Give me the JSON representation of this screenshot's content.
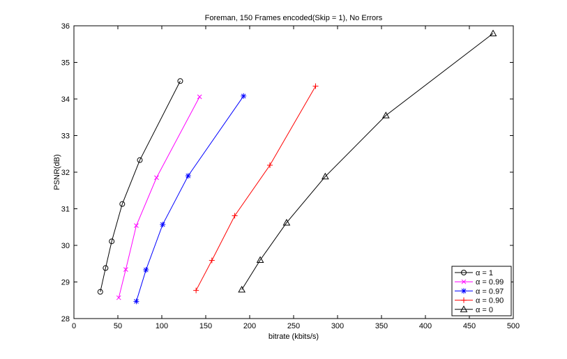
{
  "chart_data": {
    "type": "line",
    "title": "Foreman, 150 Frames encoded(Skip = 1), No Errors",
    "xlabel": "bitrate (kbits/s)",
    "ylabel": "PSNR(dB)",
    "xlim": [
      0,
      500
    ],
    "ylim": [
      28,
      36
    ],
    "xticks": [
      "0",
      "50",
      "100",
      "150",
      "200",
      "250",
      "300",
      "350",
      "400",
      "450",
      "500"
    ],
    "yticks": [
      "28",
      "29",
      "30",
      "31",
      "32",
      "33",
      "34",
      "35",
      "36"
    ],
    "grid": false,
    "legend_position": "bottom-right",
    "series": [
      {
        "name": "α = 1",
        "color": "#000000",
        "marker": "circle",
        "x": [
          30,
          36,
          43,
          55,
          75,
          121
        ],
        "y": [
          28.73,
          29.38,
          30.11,
          31.13,
          32.33,
          34.49
        ]
      },
      {
        "name": "α = 0.99",
        "color": "#ff00ff",
        "marker": "x",
        "x": [
          51,
          59,
          71,
          94,
          143
        ],
        "y": [
          28.57,
          29.34,
          30.54,
          31.85,
          34.06
        ]
      },
      {
        "name": "α = 0.97",
        "color": "#0000ff",
        "marker": "star",
        "x": [
          71,
          82,
          101,
          130,
          193
        ],
        "y": [
          28.47,
          29.33,
          30.57,
          31.9,
          34.08
        ]
      },
      {
        "name": "α = 0.90",
        "color": "#ff0000",
        "marker": "plus",
        "x": [
          139,
          157,
          183,
          223,
          275
        ],
        "y": [
          28.77,
          29.59,
          30.81,
          32.19,
          34.35
        ]
      },
      {
        "name": "α = 0",
        "color": "#000000",
        "marker": "triangle",
        "x": [
          191,
          212,
          242,
          286,
          355,
          477
        ],
        "y": [
          28.79,
          29.6,
          30.62,
          31.88,
          33.55,
          35.79
        ]
      }
    ]
  }
}
